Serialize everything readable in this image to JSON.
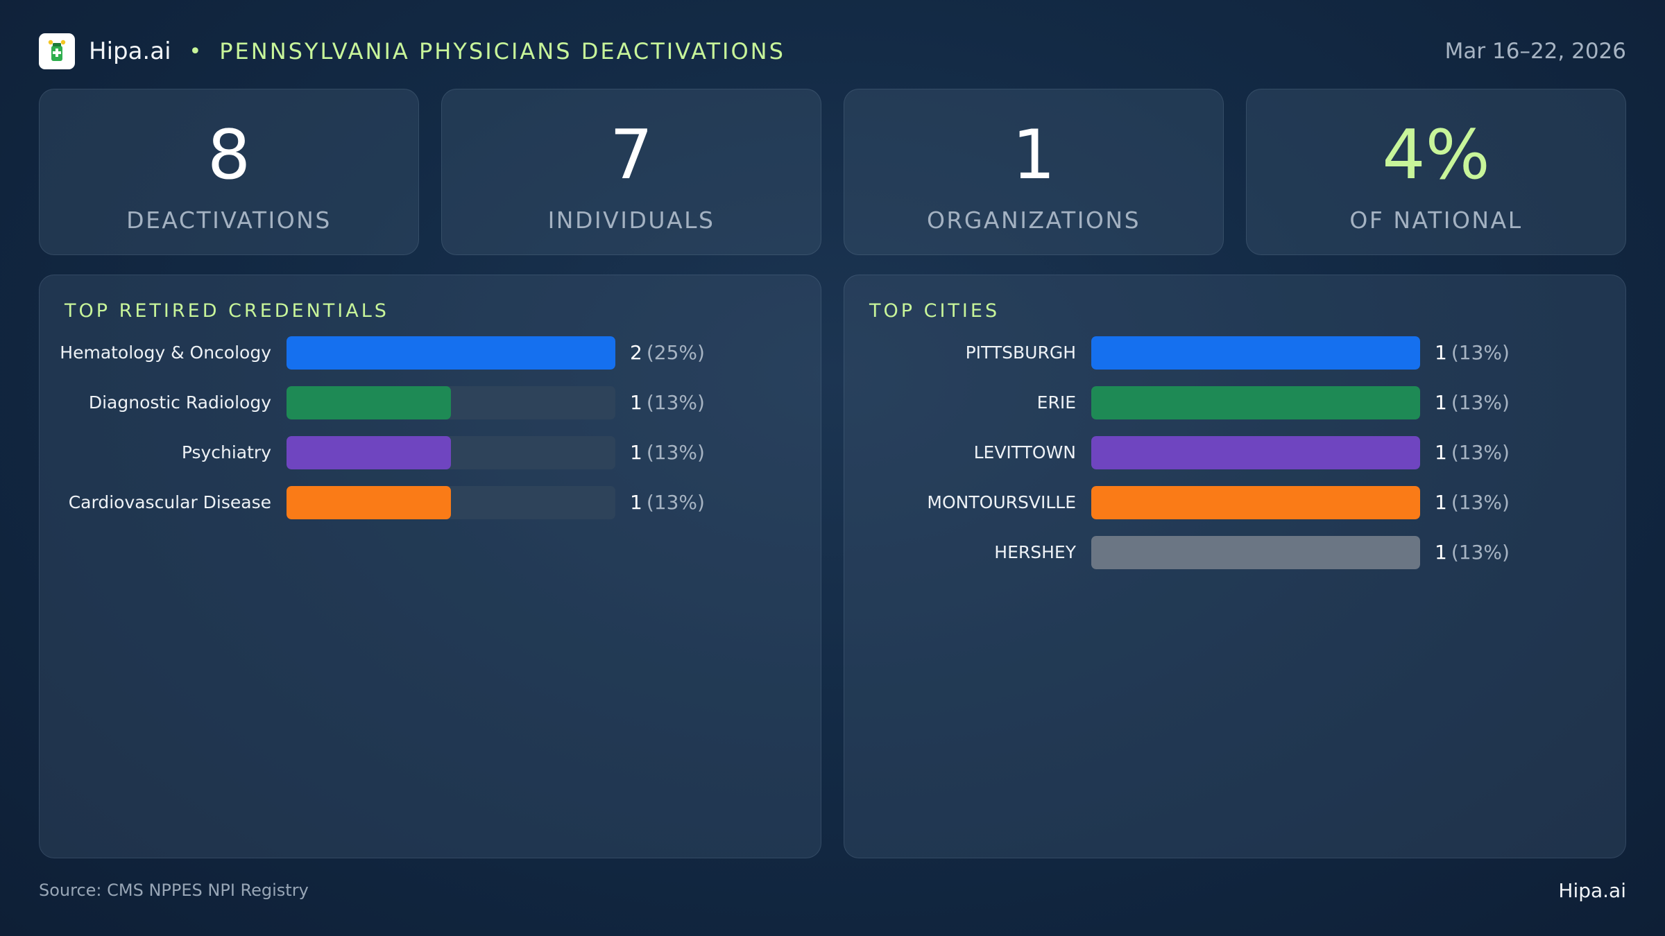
{
  "header": {
    "brand": "Hipa.ai",
    "separator": "•",
    "title": "PENNSYLVANIA PHYSICIANS DEACTIVATIONS",
    "date_range": "Mar 16–22, 2026"
  },
  "kpis": [
    {
      "value": "8",
      "label": "DEACTIVATIONS",
      "accent": false
    },
    {
      "value": "7",
      "label": "INDIVIDUALS",
      "accent": false
    },
    {
      "value": "1",
      "label": "ORGANIZATIONS",
      "accent": false
    },
    {
      "value": "4%",
      "label": "OF NATIONAL",
      "accent": true
    }
  ],
  "colors": {
    "accent": "#c8f59a",
    "blue": "#1570ef",
    "green": "#1e8a55",
    "purple": "#6f45c0",
    "orange": "#fa7b17",
    "gray": "#6b7684",
    "track": "#2e435a"
  },
  "chart_data": [
    {
      "type": "bar",
      "orientation": "horizontal",
      "title": "TOP RETIRED CREDENTIALS",
      "categories": [
        "Hematology & Oncology",
        "Diagnostic Radiology",
        "Psychiatry",
        "Cardiovascular Disease"
      ],
      "values": [
        2,
        1,
        1,
        1
      ],
      "percent_labels": [
        "(25%)",
        "(13%)",
        "(13%)",
        "(13%)"
      ],
      "bar_colors": [
        "#1570ef",
        "#1e8a55",
        "#6f45c0",
        "#fa7b17"
      ],
      "xlim": [
        0,
        2
      ]
    },
    {
      "type": "bar",
      "orientation": "horizontal",
      "title": "TOP CITIES",
      "categories": [
        "PITTSBURGH",
        "ERIE",
        "LEVITTOWN",
        "MONTOURSVILLE",
        "HERSHEY"
      ],
      "values": [
        1,
        1,
        1,
        1,
        1
      ],
      "percent_labels": [
        "(13%)",
        "(13%)",
        "(13%)",
        "(13%)",
        "(13%)"
      ],
      "bar_colors": [
        "#1570ef",
        "#1e8a55",
        "#6f45c0",
        "#fa7b17",
        "#6b7684"
      ],
      "xlim": [
        0,
        1
      ]
    }
  ],
  "footer": {
    "source": "Source: CMS NPPES NPI Registry",
    "brand": "Hipa.ai"
  }
}
